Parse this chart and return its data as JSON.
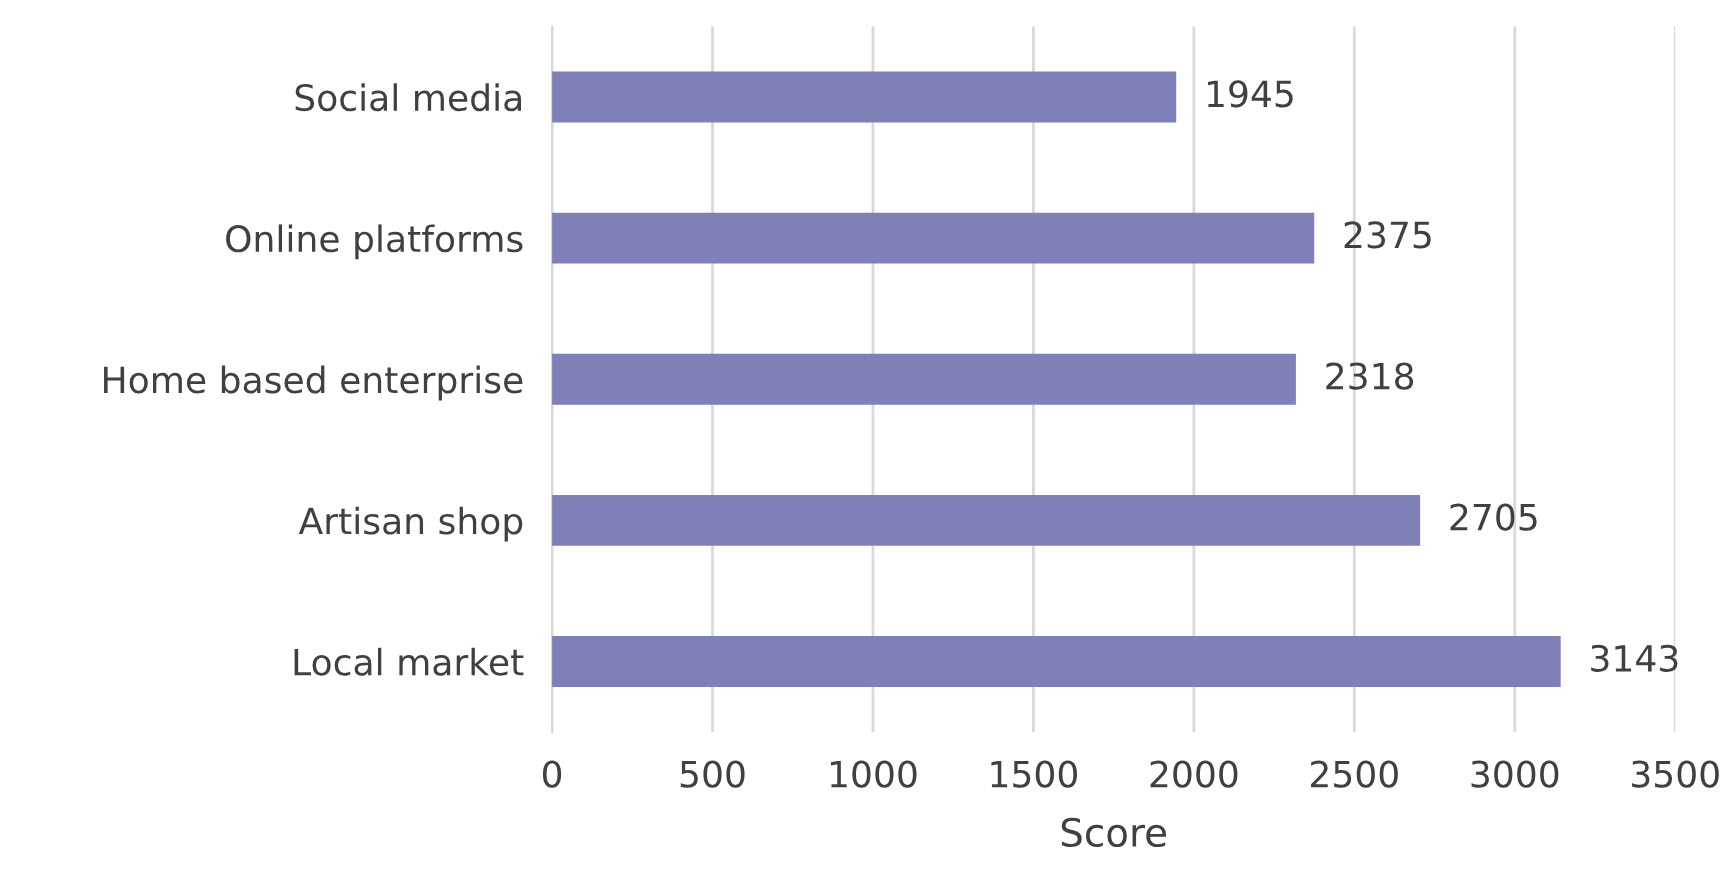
{
  "chart_data": {
    "type": "bar",
    "orientation": "horizontal",
    "categories": [
      "Social media",
      "Online platforms",
      "Home based enterprise",
      "Artisan shop",
      "Local market"
    ],
    "values": [
      1945,
      2375,
      2318,
      2705,
      3143
    ],
    "color": "#8080b8",
    "xlabel": "Score",
    "xlim": [
      0,
      3500
    ],
    "xticks": [
      0,
      500,
      1000,
      1500,
      2000,
      2500,
      3000,
      3500
    ],
    "grid": "x",
    "data_labels": true
  }
}
